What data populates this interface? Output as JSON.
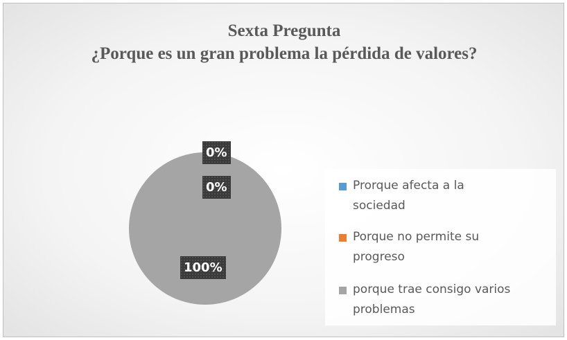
{
  "chart_data": {
    "type": "pie",
    "title": [
      "Sexta Pregunta",
      "¿Porque es un gran problema la pérdida de valores?"
    ],
    "categories": [
      "Prorque afecta a la sociedad",
      "Porque no permite su progreso",
      "porque trae consigo varios problemas"
    ],
    "values": [
      0,
      0,
      100
    ],
    "value_labels": [
      "0%",
      "0%",
      "100%"
    ],
    "colors": [
      "#5b9bd5",
      "#ed7d31",
      "#a5a5a5"
    ],
    "legend": "right"
  }
}
